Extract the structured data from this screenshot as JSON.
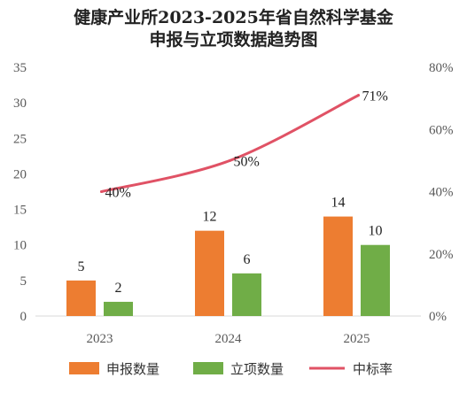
{
  "chart_data": {
    "type": "bar",
    "title_lines": [
      "健康产业所2023-2025年省自然科学基金",
      "申报与立项数据趋势图"
    ],
    "categories": [
      "2023",
      "2024",
      "2025"
    ],
    "series": [
      {
        "name": "申报数量",
        "type": "bar",
        "color": "#ED7D31",
        "values": [
          5,
          12,
          14
        ],
        "labels": [
          "5",
          "12",
          "14"
        ]
      },
      {
        "name": "立项数量",
        "type": "bar",
        "color": "#70AD47",
        "values": [
          2,
          6,
          10
        ],
        "labels": [
          "2",
          "6",
          "10"
        ]
      },
      {
        "name": "中标率",
        "type": "line",
        "axis": "right",
        "color": "#E05265",
        "values": [
          0.4,
          0.5,
          0.71
        ],
        "labels": [
          "40%",
          "50%",
          "71%"
        ]
      }
    ],
    "y_left": {
      "min": 0,
      "max": 35,
      "ticks": [
        "0",
        "5",
        "10",
        "15",
        "20",
        "25",
        "30",
        "35"
      ]
    },
    "y_right": {
      "min": 0,
      "max": 0.8,
      "ticks": [
        "0%",
        "20%",
        "40%",
        "60%",
        "80%"
      ]
    },
    "grid": false,
    "legend_position": "bottom"
  }
}
